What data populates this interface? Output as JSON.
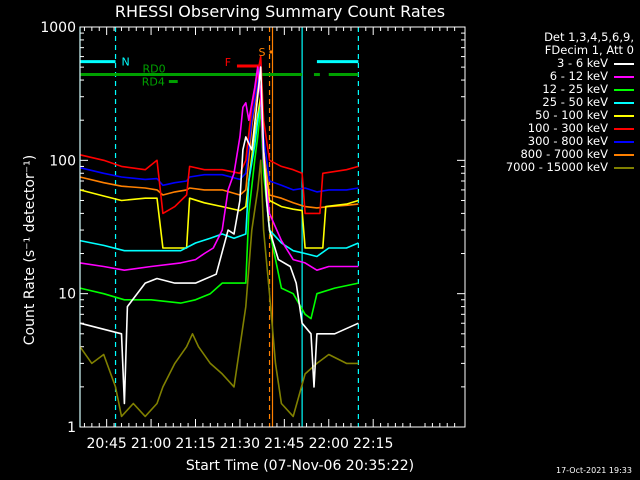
{
  "chart_data": {
    "type": "line",
    "title": "RHESSI Observing Summary Count Rates",
    "xlabel": "Start Time (07-Nov-06 20:35:22)",
    "ylabel": "Count Rate (s⁻¹ detector⁻¹)",
    "xlim_min": [
      36,
      166
    ],
    "ylim": [
      1,
      1000
    ],
    "yscale": "log",
    "x_ticks": [
      {
        "value": 45,
        "label": "20:45"
      },
      {
        "value": 60,
        "label": "21:00"
      },
      {
        "value": 75,
        "label": "21:15"
      },
      {
        "value": 90,
        "label": "21:30"
      },
      {
        "value": 105,
        "label": "21:45"
      },
      {
        "value": 120,
        "label": "22:00"
      },
      {
        "value": 135,
        "label": "22:15"
      }
    ],
    "y_ticks": [
      {
        "value": 1,
        "label": "1"
      },
      {
        "value": 10,
        "label": "10"
      },
      {
        "value": 100,
        "label": "100"
      },
      {
        "value": 1000,
        "label": "1000"
      }
    ],
    "legend_header": [
      "Det 1,3,4,5,6,9,",
      "FDecim 1, Att 0"
    ],
    "series": [
      {
        "name": "3 - 6 keV",
        "color": "#ffffff",
        "points": [
          [
            36,
            6
          ],
          [
            50,
            5
          ],
          [
            51,
            1.5
          ],
          [
            52,
            8
          ],
          [
            58,
            12
          ],
          [
            62,
            13
          ],
          [
            68,
            12
          ],
          [
            75,
            12
          ],
          [
            82,
            14
          ],
          [
            86,
            30
          ],
          [
            88,
            28
          ],
          [
            90,
            50
          ],
          [
            91,
            120
          ],
          [
            92,
            150
          ],
          [
            94,
            120
          ],
          [
            96,
            300
          ],
          [
            97,
            500
          ],
          [
            98,
            120
          ],
          [
            99,
            50
          ],
          [
            100,
            30
          ],
          [
            103,
            18
          ],
          [
            107,
            16
          ],
          [
            109,
            12
          ],
          [
            111,
            6
          ],
          [
            114,
            5
          ],
          [
            115,
            2
          ],
          [
            116,
            5
          ],
          [
            122,
            5
          ],
          [
            130,
            6
          ]
        ]
      },
      {
        "name": "6 - 12 keV",
        "color": "#ff00ff",
        "points": [
          [
            36,
            17
          ],
          [
            44,
            16
          ],
          [
            51,
            15
          ],
          [
            60,
            16
          ],
          [
            70,
            17
          ],
          [
            75,
            18
          ],
          [
            78,
            20
          ],
          [
            81,
            22
          ],
          [
            84,
            30
          ],
          [
            86,
            60
          ],
          [
            88,
            80
          ],
          [
            90,
            150
          ],
          [
            91,
            250
          ],
          [
            92,
            270
          ],
          [
            93,
            200
          ],
          [
            95,
            350
          ],
          [
            96,
            500
          ],
          [
            97,
            300
          ],
          [
            98,
            100
          ],
          [
            100,
            40
          ],
          [
            104,
            25
          ],
          [
            108,
            18
          ],
          [
            112,
            17
          ],
          [
            116,
            15
          ],
          [
            120,
            16
          ],
          [
            130,
            16
          ]
        ]
      },
      {
        "name": "12 - 25 keV",
        "color": "#00ff00",
        "points": [
          [
            36,
            11
          ],
          [
            44,
            10
          ],
          [
            51,
            9
          ],
          [
            60,
            9
          ],
          [
            70,
            8.5
          ],
          [
            75,
            9
          ],
          [
            80,
            10
          ],
          [
            84,
            12
          ],
          [
            88,
            12
          ],
          [
            92,
            12
          ],
          [
            93,
            40
          ],
          [
            95,
            100
          ],
          [
            96,
            150
          ],
          [
            97,
            250
          ],
          [
            98,
            80
          ],
          [
            100,
            30
          ],
          [
            104,
            11
          ],
          [
            108,
            10
          ],
          [
            112,
            7
          ],
          [
            114,
            6.5
          ],
          [
            116,
            10
          ],
          [
            122,
            11
          ],
          [
            130,
            12
          ]
        ]
      },
      {
        "name": "25 - 50 keV",
        "color": "#00ffff",
        "points": [
          [
            36,
            25
          ],
          [
            44,
            23
          ],
          [
            51,
            21
          ],
          [
            60,
            21
          ],
          [
            70,
            21
          ],
          [
            75,
            24
          ],
          [
            80,
            26
          ],
          [
            84,
            28
          ],
          [
            88,
            26
          ],
          [
            92,
            28
          ],
          [
            93,
            70
          ],
          [
            95,
            130
          ],
          [
            96,
            200
          ],
          [
            97,
            260
          ],
          [
            98,
            90
          ],
          [
            100,
            30
          ],
          [
            104,
            24
          ],
          [
            108,
            21
          ],
          [
            112,
            20
          ],
          [
            116,
            19
          ],
          [
            120,
            22
          ],
          [
            126,
            22
          ],
          [
            130,
            24
          ]
        ]
      },
      {
        "name": "50 - 100 keV",
        "color": "#ffff00",
        "points": [
          [
            36,
            60
          ],
          [
            44,
            54
          ],
          [
            50,
            50
          ],
          [
            58,
            52
          ],
          [
            62,
            52
          ],
          [
            64,
            22
          ],
          [
            68,
            22
          ],
          [
            72,
            22
          ],
          [
            73,
            52
          ],
          [
            78,
            48
          ],
          [
            84,
            45
          ],
          [
            90,
            42
          ],
          [
            92,
            45
          ],
          [
            93,
            70
          ],
          [
            95,
            160
          ],
          [
            97,
            300
          ],
          [
            98,
            100
          ],
          [
            100,
            50
          ],
          [
            104,
            45
          ],
          [
            108,
            43
          ],
          [
            111,
            42
          ],
          [
            112,
            22
          ],
          [
            118,
            22
          ],
          [
            119,
            45
          ],
          [
            126,
            47
          ],
          [
            130,
            50
          ]
        ]
      },
      {
        "name": "100 - 300 keV",
        "color": "#ff0000",
        "points": [
          [
            36,
            110
          ],
          [
            44,
            100
          ],
          [
            50,
            90
          ],
          [
            58,
            85
          ],
          [
            62,
            100
          ],
          [
            64,
            40
          ],
          [
            68,
            45
          ],
          [
            72,
            55
          ],
          [
            73,
            90
          ],
          [
            78,
            85
          ],
          [
            84,
            85
          ],
          [
            90,
            80
          ],
          [
            92,
            100
          ],
          [
            94,
            250
          ],
          [
            96,
            450
          ],
          [
            97,
            600
          ],
          [
            98,
            200
          ],
          [
            100,
            100
          ],
          [
            104,
            90
          ],
          [
            108,
            85
          ],
          [
            111,
            80
          ],
          [
            112,
            40
          ],
          [
            117,
            40
          ],
          [
            118,
            80
          ],
          [
            126,
            85
          ],
          [
            130,
            90
          ]
        ]
      },
      {
        "name": "300 - 800 keV",
        "color": "#0000ff",
        "points": [
          [
            36,
            88
          ],
          [
            44,
            80
          ],
          [
            50,
            75
          ],
          [
            58,
            72
          ],
          [
            62,
            73
          ],
          [
            64,
            65
          ],
          [
            68,
            68
          ],
          [
            72,
            70
          ],
          [
            73,
            75
          ],
          [
            78,
            78
          ],
          [
            84,
            78
          ],
          [
            90,
            72
          ],
          [
            92,
            80
          ],
          [
            94,
            200
          ],
          [
            96,
            400
          ],
          [
            97,
            550
          ],
          [
            98,
            150
          ],
          [
            100,
            70
          ],
          [
            104,
            65
          ],
          [
            108,
            60
          ],
          [
            112,
            62
          ],
          [
            116,
            58
          ],
          [
            120,
            60
          ],
          [
            126,
            60
          ],
          [
            130,
            62
          ]
        ]
      },
      {
        "name": "800 - 7000 keV",
        "color": "#ff8000",
        "points": [
          [
            36,
            75
          ],
          [
            44,
            68
          ],
          [
            50,
            64
          ],
          [
            58,
            62
          ],
          [
            62,
            60
          ],
          [
            64,
            55
          ],
          [
            68,
            58
          ],
          [
            72,
            60
          ],
          [
            73,
            62
          ],
          [
            78,
            60
          ],
          [
            84,
            60
          ],
          [
            90,
            55
          ],
          [
            92,
            60
          ],
          [
            94,
            180
          ],
          [
            96,
            350
          ],
          [
            97,
            480
          ],
          [
            98,
            120
          ],
          [
            100,
            55
          ],
          [
            104,
            52
          ],
          [
            108,
            48
          ],
          [
            112,
            45
          ],
          [
            116,
            44
          ],
          [
            120,
            45
          ],
          [
            126,
            46
          ],
          [
            130,
            47
          ]
        ]
      },
      {
        "name": "7000 - 15000 keV",
        "color": "#808000",
        "points": [
          [
            36,
            4
          ],
          [
            40,
            3
          ],
          [
            44,
            3.5
          ],
          [
            48,
            2
          ],
          [
            50,
            1.2
          ],
          [
            54,
            1.5
          ],
          [
            58,
            1.2
          ],
          [
            62,
            1.5
          ],
          [
            64,
            2
          ],
          [
            68,
            3
          ],
          [
            72,
            4
          ],
          [
            74,
            5
          ],
          [
            76,
            4
          ],
          [
            80,
            3
          ],
          [
            84,
            2.5
          ],
          [
            88,
            2
          ],
          [
            90,
            4
          ],
          [
            92,
            8
          ],
          [
            94,
            30
          ],
          [
            96,
            60
          ],
          [
            97,
            100
          ],
          [
            98,
            30
          ],
          [
            100,
            10
          ],
          [
            102,
            3
          ],
          [
            104,
            1.5
          ],
          [
            108,
            1.2
          ],
          [
            112,
            2.5
          ],
          [
            116,
            3
          ],
          [
            120,
            3.5
          ],
          [
            126,
            3
          ],
          [
            130,
            3
          ]
        ]
      }
    ],
    "annotations": [
      {
        "label": "N",
        "color": "#00ffff",
        "value_spans": [
          [
            36,
            48
          ],
          [
            116,
            130
          ]
        ],
        "level": 550
      },
      {
        "label": "RD0",
        "color": "#00a000",
        "value_spans": [
          [
            36,
            111
          ],
          [
            115,
            117
          ],
          [
            120,
            130
          ]
        ],
        "level": 440
      },
      {
        "label": "RD4",
        "color": "#00a000",
        "value_spans": [
          [
            66,
            69
          ]
        ],
        "level": 390
      },
      {
        "label": "F",
        "color": "#ff0000",
        "value_spans": [
          [
            89,
            97
          ]
        ],
        "level": 510
      },
      {
        "label": "S",
        "color": "#ff8000",
        "value_spans": [
          [
            100,
            101
          ]
        ],
        "level": 650
      }
    ],
    "vlines": [
      {
        "x": 36,
        "color": "#00ffff",
        "style": "solid"
      },
      {
        "x": 48,
        "color": "#00ffff",
        "style": "dashed"
      },
      {
        "x": 100,
        "color": "#ff8000",
        "style": "dashed"
      },
      {
        "x": 101,
        "color": "#ff8000",
        "style": "solid"
      },
      {
        "x": 111,
        "color": "#00ffff",
        "style": "solid"
      },
      {
        "x": 130,
        "color": "#00ffff",
        "style": "dashed"
      }
    ],
    "timestamp": "17-Oct-2021 19:33"
  }
}
